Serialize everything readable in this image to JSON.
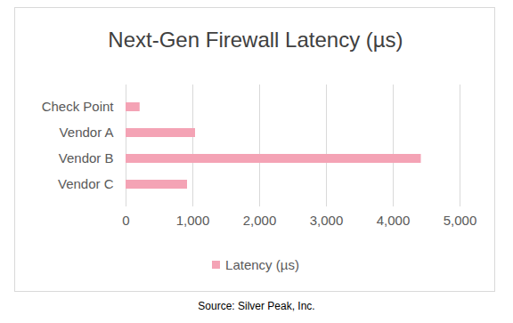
{
  "chart_data": {
    "type": "bar",
    "orientation": "horizontal",
    "title": "Next-Gen Firewall Latency (µs)",
    "categories": [
      "Check Point",
      "Vendor A",
      "Vendor B",
      "Vendor C"
    ],
    "series": [
      {
        "name": "Latency (µs)",
        "color": "#f4a3b5",
        "values": [
          210,
          1040,
          4420,
          920
        ]
      }
    ],
    "xlim": [
      0,
      5000
    ],
    "xticks": [
      0,
      1000,
      2000,
      3000,
      4000,
      5000
    ],
    "grid": true,
    "legend": "bottom",
    "source": "Source: Silver Peak, Inc."
  }
}
